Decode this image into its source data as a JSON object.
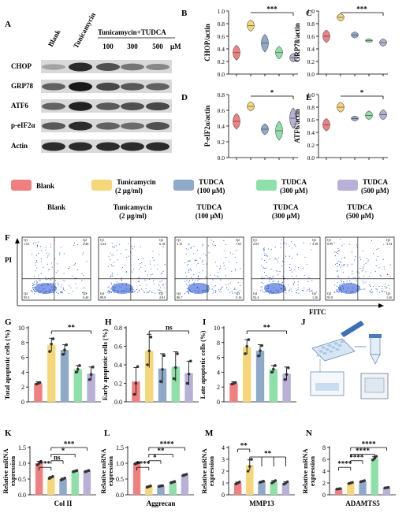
{
  "colors": {
    "blank": "#f08080",
    "tunicamycin": "#f5d77a",
    "tudca100": "#8fa9c9",
    "tudca300": "#8fe0a8",
    "tudca500": "#b8b0d6",
    "scatter_blue": "#1f4ecf"
  },
  "panelA": {
    "letter": "A",
    "top_labels": [
      "Blank",
      "Tunicamycin"
    ],
    "group_label": "Tunicamycin+TUDCA",
    "doses": [
      "100",
      "300",
      "500"
    ],
    "unit": "μM",
    "rows": [
      {
        "label": "CHOP",
        "intensity": [
          0.2,
          0.85,
          0.65,
          0.45,
          0.35
        ]
      },
      {
        "label": "GRP78",
        "intensity": [
          0.55,
          0.95,
          0.7,
          0.6,
          0.55
        ]
      },
      {
        "label": "ATF6",
        "intensity": [
          0.55,
          0.9,
          0.6,
          0.65,
          0.7
        ]
      },
      {
        "label": "p-eIF2α",
        "intensity": [
          0.6,
          0.85,
          0.55,
          0.5,
          0.65
        ]
      },
      {
        "label": "Actin",
        "intensity": [
          0.85,
          0.85,
          0.85,
          0.85,
          0.85
        ]
      }
    ]
  },
  "legend": {
    "items": [
      {
        "line1": "Blank",
        "line2": "",
        "color_key": "blank"
      },
      {
        "line1": "Tunicamycin",
        "line2": "(2 μg/ml)",
        "color_key": "tunicamycin"
      },
      {
        "line1": "TUDCA",
        "line2": "(100 μM)",
        "color_key": "tudca100"
      },
      {
        "line1": "TUDCA",
        "line2": "(300 μM)",
        "color_key": "tudca300"
      },
      {
        "line1": "TUDCA",
        "line2": "(500 μM)",
        "color_key": "tudca500"
      }
    ]
  },
  "panelF": {
    "letter": "F",
    "y_axis": "PI",
    "x_axis": "FITC",
    "plots": [
      {
        "title1": "Blank",
        "title2": "",
        "quadrants": [
          "Q1",
          "1.63",
          "Q2",
          "2.46",
          "Q4",
          "95.5",
          "Q3",
          "0.40"
        ]
      },
      {
        "title1": "Tunicamycin",
        "title2": "(2 μg/ml)",
        "quadrants": [
          "Q1",
          "1.64",
          "Q2",
          "6.18",
          "Q4",
          "89.8",
          "Q3",
          "2.81"
        ]
      },
      {
        "title1": "TUDCA",
        "title2": "(100 μM)",
        "quadrants": [
          "Q1",
          "3.13",
          "Q2",
          "7.03",
          "Q4",
          "86.7",
          "Q3",
          "3.16"
        ]
      },
      {
        "title1": "TUDCA",
        "title2": "(300 μM)",
        "quadrants": [
          "Q1",
          "2.03",
          "Q2",
          "4.36",
          "Q4",
          "92.4",
          "Q3",
          "1.26"
        ]
      },
      {
        "title1": "TUDCA",
        "title2": "(500 μM)",
        "quadrants": [
          "Q1",
          "0.99",
          "Q2",
          "3.54",
          "Q4",
          "93.8",
          "Q3",
          "1.26"
        ]
      }
    ]
  },
  "panelJ": {
    "letter": "J"
  },
  "chart_data": [
    {
      "id": "B",
      "type": "violin",
      "ylabel": "CHOP/actin",
      "ylim": [
        0.0,
        1.0
      ],
      "yticks": [
        "0.0",
        "0.2",
        "0.4",
        "0.6",
        "0.8",
        "1.0"
      ],
      "values": [
        0.34,
        0.77,
        0.49,
        0.34,
        0.26
      ],
      "spread": [
        0.12,
        0.09,
        0.14,
        0.1,
        0.07
      ],
      "sig": [
        {
          "from": 1,
          "to": 4,
          "label": "***"
        }
      ]
    },
    {
      "id": "C",
      "type": "violin",
      "ylabel": "GRP78/actin",
      "ylim": [
        0.0,
        1.0
      ],
      "yticks": [
        "0.0",
        "0.2",
        "0.4",
        "0.6",
        "0.8",
        "1.0"
      ],
      "values": [
        0.6,
        0.9,
        0.62,
        0.53,
        0.5
      ],
      "spread": [
        0.1,
        0.06,
        0.05,
        0.03,
        0.06
      ],
      "sig": [
        {
          "from": 1,
          "to": 4,
          "label": "***"
        }
      ]
    },
    {
      "id": "D",
      "type": "violin",
      "ylabel": "P-eIF2α/actin",
      "ylim": [
        0.0,
        0.8
      ],
      "yticks": [
        "0.0",
        "0.2",
        "0.4",
        "0.6",
        "0.8"
      ],
      "values": [
        0.46,
        0.65,
        0.36,
        0.34,
        0.5
      ],
      "spread": [
        0.1,
        0.06,
        0.07,
        0.12,
        0.13
      ],
      "sig": [
        {
          "from": 1,
          "to": 4,
          "label": "*"
        }
      ]
    },
    {
      "id": "E",
      "type": "violin",
      "ylabel": "ATF6/actin",
      "ylim": [
        0.0,
        1.0
      ],
      "yticks": [
        "0.0",
        "0.2",
        "0.4",
        "0.6",
        "0.8",
        "1.0"
      ],
      "values": [
        0.52,
        0.8,
        0.62,
        0.67,
        0.68
      ],
      "spread": [
        0.1,
        0.08,
        0.04,
        0.07,
        0.08
      ],
      "sig": [
        {
          "from": 1,
          "to": 4,
          "label": "*"
        }
      ]
    },
    {
      "id": "G",
      "type": "bar",
      "ylabel": "Total apoptotic cells (%)",
      "ylim": [
        0,
        10
      ],
      "yticks": [
        "0",
        "2",
        "4",
        "6",
        "8",
        "10"
      ],
      "values": [
        2.5,
        7.7,
        7.0,
        4.4,
        3.8
      ],
      "errors": [
        0.2,
        0.9,
        0.7,
        0.5,
        0.9
      ],
      "points": [
        [
          2.4,
          2.5,
          2.6
        ],
        [
          6.8,
          7.8,
          8.5
        ],
        [
          6.4,
          7.0,
          7.7
        ],
        [
          4.0,
          4.4,
          4.9
        ],
        [
          3.0,
          3.7,
          4.7
        ]
      ],
      "sig": [
        {
          "from": 1,
          "to": 4,
          "label": "**"
        }
      ]
    },
    {
      "id": "H",
      "type": "bar",
      "ylabel": "Early apoptotic cells (%)",
      "ylim": [
        0,
        0.8
      ],
      "yticks": [
        "0.0",
        "0.2",
        "0.4",
        "0.6",
        "0.8"
      ],
      "values": [
        0.22,
        0.55,
        0.36,
        0.38,
        0.31
      ],
      "errors": [
        0.15,
        0.18,
        0.16,
        0.16,
        0.13
      ],
      "points": [
        [
          0.08,
          0.2,
          0.38
        ],
        [
          0.4,
          0.55,
          0.7
        ],
        [
          0.22,
          0.35,
          0.5
        ],
        [
          0.25,
          0.37,
          0.52
        ],
        [
          0.2,
          0.3,
          0.44
        ]
      ],
      "sig": [
        {
          "from": 1,
          "to": 4,
          "label": "ns"
        }
      ]
    },
    {
      "id": "I",
      "type": "bar",
      "ylabel": "Late apoptotic cells (%)",
      "ylim": [
        0,
        10
      ],
      "yticks": [
        "0",
        "2",
        "4",
        "6",
        "8",
        "10"
      ],
      "values": [
        2.5,
        7.4,
        6.9,
        4.4,
        3.8
      ],
      "errors": [
        0.2,
        1.0,
        0.8,
        0.5,
        0.9
      ],
      "points": [
        [
          2.4,
          2.5,
          2.6
        ],
        [
          6.5,
          7.5,
          8.4
        ],
        [
          6.2,
          6.9,
          7.6
        ],
        [
          4.0,
          4.4,
          4.9
        ],
        [
          3.0,
          3.7,
          4.6
        ]
      ],
      "sig": [
        {
          "from": 1,
          "to": 4,
          "label": "**"
        }
      ]
    },
    {
      "id": "K",
      "type": "bar",
      "ylabel": "Relative mRNA expression",
      "xlabel": "Col II",
      "ylim": [
        0.0,
        1.5
      ],
      "yticks": [
        "0.0",
        "0.5",
        "1.0",
        "1.5"
      ],
      "values": [
        1.0,
        0.55,
        0.5,
        0.75,
        0.75
      ],
      "errors": [
        0.06,
        0.03,
        0.03,
        0.02,
        0.02
      ],
      "points": [
        [
          0.95,
          1.0,
          1.06
        ],
        [
          0.52,
          0.55,
          0.58
        ],
        [
          0.47,
          0.5,
          0.53
        ],
        [
          0.73,
          0.75,
          0.77
        ],
        [
          0.73,
          0.75,
          0.77
        ]
      ],
      "sig": [
        {
          "from": 0,
          "to": 1,
          "label": "***"
        },
        {
          "from": 1,
          "to": 2,
          "label": "ns"
        },
        {
          "from": 1,
          "to": 3,
          "label": "*"
        },
        {
          "from": 1,
          "to": 4,
          "label": "***"
        }
      ]
    },
    {
      "id": "L",
      "type": "bar",
      "ylabel": "Relative mRNA expression",
      "xlabel": "Aggrecan",
      "ylim": [
        0.0,
        1.5
      ],
      "yticks": [
        "0.0",
        "0.5",
        "1.0",
        "1.5"
      ],
      "values": [
        1.0,
        0.26,
        0.28,
        0.4,
        0.63
      ],
      "errors": [
        0.02,
        0.02,
        0.01,
        0.02,
        0.02
      ],
      "points": [
        [
          0.98,
          1.0,
          1.02
        ],
        [
          0.24,
          0.26,
          0.28
        ],
        [
          0.27,
          0.28,
          0.29
        ],
        [
          0.38,
          0.4,
          0.42
        ],
        [
          0.61,
          0.63,
          0.65
        ]
      ],
      "sig": [
        {
          "from": 0,
          "to": 1,
          "label": "****"
        },
        {
          "from": 1,
          "to": 2,
          "label": "*"
        },
        {
          "from": 1,
          "to": 3,
          "label": "**"
        },
        {
          "from": 1,
          "to": 4,
          "label": "****"
        }
      ]
    },
    {
      "id": "M",
      "type": "bar",
      "ylabel": "Relative mRNA expression",
      "xlabel": "MMP13",
      "ylim": [
        0,
        4
      ],
      "yticks": [
        "0",
        "1",
        "2",
        "3",
        "4"
      ],
      "values": [
        1.0,
        2.5,
        1.1,
        1.1,
        1.0
      ],
      "errors": [
        0.08,
        0.45,
        0.05,
        0.1,
        0.1
      ],
      "points": [
        [
          0.92,
          1.0,
          1.08
        ],
        [
          2.0,
          2.4,
          3.0
        ],
        [
          1.05,
          1.1,
          1.15
        ],
        [
          1.0,
          1.1,
          1.2
        ],
        [
          0.9,
          1.0,
          1.1
        ]
      ],
      "sig": [
        {
          "from": 0,
          "to": 1,
          "label": "**"
        },
        {
          "from": 1,
          "to": 4,
          "label": "**",
          "multi": true
        }
      ]
    },
    {
      "id": "N",
      "type": "bar",
      "ylabel": "Relative mRNA expression",
      "xlabel": "ADAMTS5",
      "ylim": [
        0,
        8
      ],
      "yticks": [
        "0",
        "2",
        "4",
        "6",
        "8"
      ],
      "values": [
        1.0,
        2.0,
        2.3,
        6.2,
        1.2
      ],
      "errors": [
        0.05,
        0.08,
        0.1,
        0.3,
        0.05
      ],
      "points": [
        [
          0.95,
          1.0,
          1.05
        ],
        [
          1.9,
          2.0,
          2.1
        ],
        [
          2.2,
          2.3,
          2.4
        ],
        [
          5.9,
          6.2,
          6.5
        ],
        [
          1.15,
          1.2,
          1.25
        ]
      ],
      "sig": [
        {
          "from": 0,
          "to": 1,
          "label": "****"
        },
        {
          "from": 1,
          "to": 2,
          "label": "****"
        },
        {
          "from": 1,
          "to": 3,
          "label": "****"
        },
        {
          "from": 1,
          "to": 4,
          "label": "****"
        }
      ]
    }
  ]
}
